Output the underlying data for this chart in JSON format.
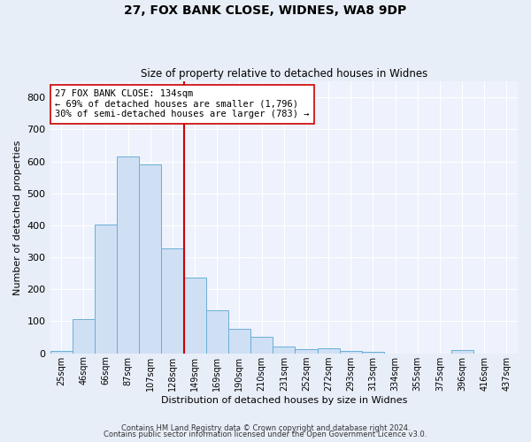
{
  "title1": "27, FOX BANK CLOSE, WIDNES, WA8 9DP",
  "title2": "Size of property relative to detached houses in Widnes",
  "xlabel": "Distribution of detached houses by size in Widnes",
  "ylabel": "Number of detached properties",
  "bar_labels": [
    "25sqm",
    "46sqm",
    "66sqm",
    "87sqm",
    "107sqm",
    "128sqm",
    "149sqm",
    "169sqm",
    "190sqm",
    "210sqm",
    "231sqm",
    "252sqm",
    "272sqm",
    "293sqm",
    "313sqm",
    "334sqm",
    "355sqm",
    "375sqm",
    "396sqm",
    "416sqm",
    "437sqm"
  ],
  "bar_values": [
    8,
    106,
    403,
    614,
    590,
    328,
    236,
    134,
    76,
    52,
    22,
    14,
    15,
    8,
    5,
    0,
    0,
    0,
    9,
    0,
    0
  ],
  "bar_color": "#cfe0f5",
  "bar_edge_color": "#6aaed6",
  "vline_x": 5.5,
  "vline_color": "#cc0000",
  "annotation_text": "27 FOX BANK CLOSE: 134sqm\n← 69% of detached houses are smaller (1,796)\n30% of semi-detached houses are larger (783) →",
  "annotation_box_color": "#ffffff",
  "annotation_box_edge": "#cc0000",
  "ylim": [
    0,
    850
  ],
  "yticks": [
    0,
    100,
    200,
    300,
    400,
    500,
    600,
    700,
    800
  ],
  "footer1": "Contains HM Land Registry data © Crown copyright and database right 2024.",
  "footer2": "Contains public sector information licensed under the Open Government Licence v3.0.",
  "bg_color": "#e8eef8",
  "plot_bg_color": "#eef2fc"
}
